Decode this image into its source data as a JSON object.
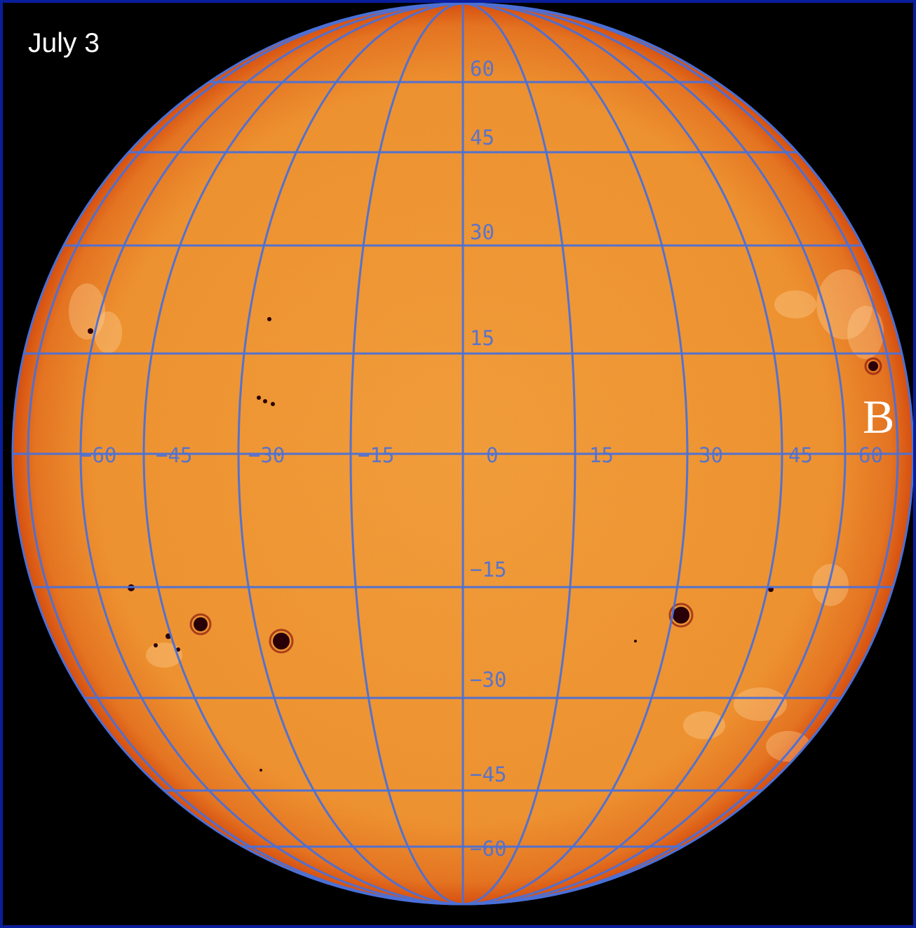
{
  "image": {
    "date_label": "July 3",
    "marker_label": "B",
    "longitude_labels": [
      "−60",
      "−45",
      "−30",
      "−15",
      "0",
      "15",
      "30",
      "45",
      "60"
    ],
    "latitude_labels": [
      "60",
      "45",
      "30",
      "15",
      "−15",
      "−30",
      "−45",
      "−60"
    ]
  },
  "colors": {
    "background": "#000000",
    "frame_border": "#0a1e9c",
    "disk_center": "#f6a042",
    "disk_limb": "#d84a12",
    "grid_lines": "#4a70d8",
    "sunspot": "#2a0008",
    "text": "#ffffff"
  }
}
